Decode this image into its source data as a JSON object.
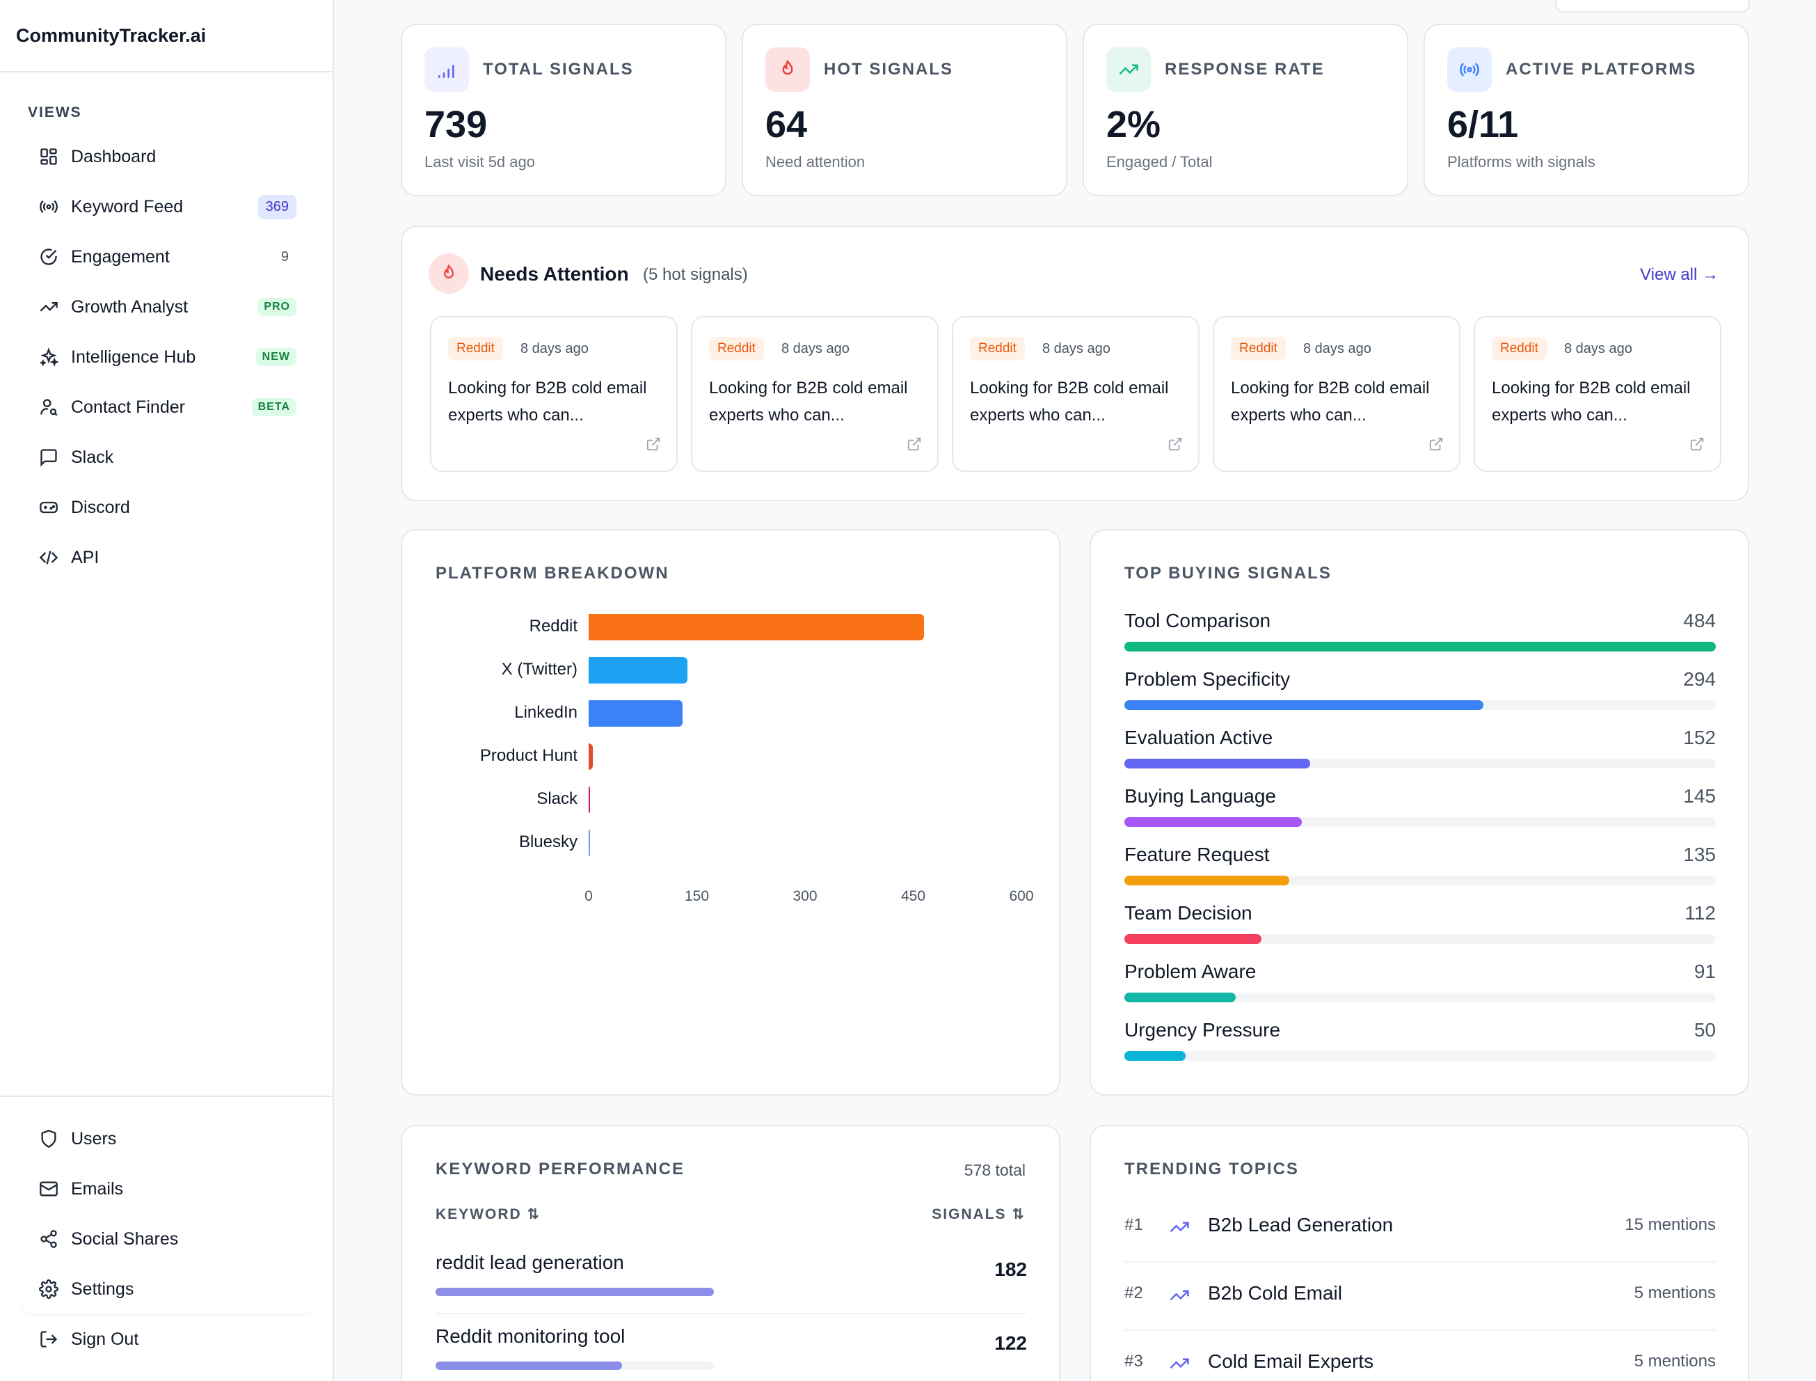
{
  "app": {
    "brand": "CommunityTracker.ai"
  },
  "sidebar": {
    "section_label": "VIEWS",
    "items": [
      {
        "label": "Dashboard",
        "icon": "dashboard-icon",
        "badge": ""
      },
      {
        "label": "Keyword Feed",
        "icon": "broadcast-icon",
        "badge": "369"
      },
      {
        "label": "Engagement",
        "icon": "check-circle-icon",
        "badge": "9"
      },
      {
        "label": "Growth Analyst",
        "icon": "trending-up-icon",
        "badge": "PRO"
      },
      {
        "label": "Intelligence Hub",
        "icon": "sparkles-icon",
        "badge": "NEW"
      },
      {
        "label": "Contact Finder",
        "icon": "user-search-icon",
        "badge": "BETA"
      },
      {
        "label": "Slack",
        "icon": "message-square-icon",
        "badge": ""
      },
      {
        "label": "Discord",
        "icon": "gamepad-icon",
        "badge": ""
      },
      {
        "label": "API",
        "icon": "code-icon",
        "badge": ""
      }
    ],
    "bottom_items": [
      {
        "label": "Users",
        "icon": "shield-icon"
      },
      {
        "label": "Emails",
        "icon": "mail-icon"
      },
      {
        "label": "Social Shares",
        "icon": "share-icon"
      },
      {
        "label": "Settings",
        "icon": "gear-icon"
      },
      {
        "label": "Sign Out",
        "icon": "sign-out-icon"
      }
    ]
  },
  "stats": [
    {
      "title": "TOTAL SIGNALS",
      "value": "739",
      "sub": "Last visit 5d ago",
      "icon": "signal-bars-icon",
      "color": "#6366f1",
      "bg": "#eef0ff"
    },
    {
      "title": "HOT SIGNALS",
      "value": "64",
      "sub": "Need attention",
      "icon": "flame-icon",
      "color": "#ef4444",
      "bg": "#fee2e2"
    },
    {
      "title": "RESPONSE RATE",
      "value": "2%",
      "sub": "Engaged / Total",
      "icon": "trending-up-icon",
      "color": "#10b981",
      "bg": "#e6f7ef"
    },
    {
      "title": "ACTIVE PLATFORMS",
      "value": "6/11",
      "sub": "Platforms with signals",
      "icon": "broadcast-icon",
      "color": "#3b82f6",
      "bg": "#e6efff"
    }
  ],
  "needs_attention": {
    "title": "Needs Attention",
    "count_label": "(5 hot signals)",
    "view_all": "View all →",
    "items": [
      {
        "source": "Reddit",
        "ago": "8 days ago",
        "text": "Looking for B2B cold email experts who can..."
      },
      {
        "source": "Reddit",
        "ago": "8 days ago",
        "text": "Looking for B2B cold email experts who can..."
      },
      {
        "source": "Reddit",
        "ago": "8 days ago",
        "text": "Looking for B2B cold email experts who can..."
      },
      {
        "source": "Reddit",
        "ago": "8 days ago",
        "text": "Looking for B2B cold email experts who can..."
      },
      {
        "source": "Reddit",
        "ago": "8 days ago",
        "text": "Looking for B2B cold email experts who can..."
      }
    ]
  },
  "platform_breakdown": {
    "title": "PLATFORM BREAKDOWN",
    "chart_data": {
      "type": "bar",
      "orientation": "horizontal",
      "categories": [
        "Reddit",
        "X (Twitter)",
        "LinkedIn",
        "Product Hunt",
        "Slack",
        "Bluesky"
      ],
      "values": [
        465,
        137,
        130,
        6,
        1,
        1
      ],
      "colors": [
        "#f97316",
        "#1da1f2",
        "#3b82f6",
        "#e34c2d",
        "#e11d48",
        "#6b9bf0"
      ],
      "xlim": [
        0,
        600
      ],
      "ticks": [
        "0",
        "150",
        "300",
        "450",
        "600"
      ]
    }
  },
  "top_buying": {
    "title": "TOP BUYING SIGNALS",
    "max": 484,
    "items": [
      {
        "name": "Tool Comparison",
        "value": 484,
        "color": "#10b981"
      },
      {
        "name": "Problem Specificity",
        "value": 294,
        "color": "#3b82f6"
      },
      {
        "name": "Evaluation Active",
        "value": 152,
        "color": "#6366f1"
      },
      {
        "name": "Buying Language",
        "value": 145,
        "color": "#a855f7"
      },
      {
        "name": "Feature Request",
        "value": 135,
        "color": "#f59e0b"
      },
      {
        "name": "Team Decision",
        "value": 112,
        "color": "#f43f5e"
      },
      {
        "name": "Problem Aware",
        "value": 91,
        "color": "#14b8a6"
      },
      {
        "name": "Urgency Pressure",
        "value": 50,
        "color": "#06b6d4"
      }
    ]
  },
  "keyword_performance": {
    "title": "KEYWORD PERFORMANCE",
    "total": "578 total",
    "col_keyword": "KEYWORD",
    "col_signals": "SIGNALS",
    "max": 182,
    "rows": [
      {
        "keyword": "reddit lead generation",
        "signals": 182
      },
      {
        "keyword": "Reddit monitoring tool",
        "signals": 122
      }
    ]
  },
  "trending": {
    "title": "TRENDING TOPICS",
    "rows": [
      {
        "rank": "#1",
        "name": "B2b Lead Generation",
        "count": "15 mentions"
      },
      {
        "rank": "#2",
        "name": "B2b Cold Email",
        "count": "5 mentions"
      },
      {
        "rank": "#3",
        "name": "Cold Email Experts",
        "count": "5 mentions"
      }
    ]
  }
}
